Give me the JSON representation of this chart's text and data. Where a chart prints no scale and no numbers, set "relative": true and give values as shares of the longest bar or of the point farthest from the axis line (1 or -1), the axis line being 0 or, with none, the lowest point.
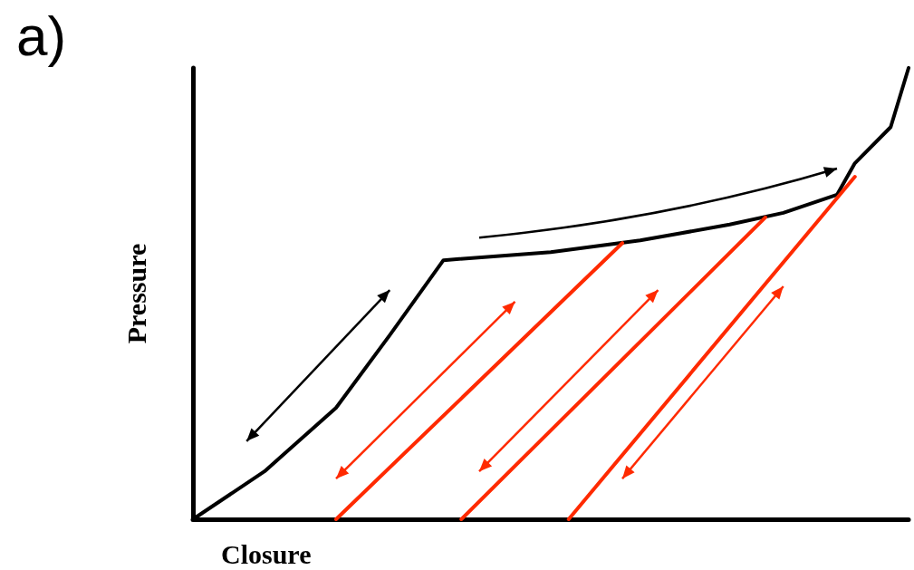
{
  "chart_data": {
    "type": "line",
    "relative": true,
    "xlabel": "Closure",
    "ylabel": "Pressure",
    "annotations": [
      "a)"
    ],
    "marker": "none",
    "line_style": "solid",
    "categories": [
      null,
      null,
      null,
      null,
      null,
      null,
      null,
      null,
      null,
      null,
      null,
      null,
      null,
      null,
      null,
      null,
      null,
      null,
      null,
      null,
      null,
      null,
      null,
      null,
      null,
      null,
      null,
      null,
      null,
      null,
      null,
      null,
      null,
      null,
      null,
      null,
      null,
      null,
      null,
      null,
      null
    ],
    "series": [
      {
        "color": "#000000",
        "values": [
          0,
          null,
          null,
          null,
          0.106,
          null,
          null,
          null,
          0.247,
          null,
          null,
          0.408,
          null,
          null,
          0.574,
          null,
          null,
          null,
          null,
          null,
          0.592,
          null,
          null,
          null,
          null,
          0.618,
          null,
          null,
          null,
          null,
          0.653,
          null,
          null,
          0.679,
          null,
          null,
          0.719,
          0.789,
          null,
          0.869,
          1
        ]
      },
      {
        "color": "#ff2a00",
        "values": [
          null,
          null,
          null,
          null,
          null,
          null,
          null,
          null,
          0,
          null,
          null,
          null,
          null,
          null,
          null,
          null,
          null,
          null,
          null,
          null,
          null,
          null,
          null,
          null,
          0.612,
          null,
          null,
          null,
          null,
          null,
          null,
          null,
          null,
          null,
          null,
          null,
          null,
          null,
          null,
          null,
          null
        ]
      },
      {
        "color": "#ff2a00",
        "values": [
          null,
          null,
          null,
          null,
          null,
          null,
          null,
          null,
          null,
          null,
          null,
          null,
          null,
          null,
          null,
          0,
          null,
          null,
          null,
          null,
          null,
          null,
          null,
          null,
          null,
          null,
          null,
          null,
          null,
          null,
          null,
          null,
          0.669,
          null,
          null,
          null,
          null,
          null,
          null,
          null,
          null
        ]
      },
      {
        "color": "#ff2a00",
        "values": [
          null,
          null,
          null,
          null,
          null,
          null,
          null,
          null,
          null,
          null,
          null,
          null,
          null,
          null,
          null,
          null,
          null,
          null,
          null,
          null,
          null,
          0,
          null,
          null,
          null,
          null,
          null,
          null,
          null,
          null,
          null,
          null,
          null,
          null,
          null,
          null,
          null,
          0.759,
          null,
          null,
          null
        ]
      }
    ]
  }
}
